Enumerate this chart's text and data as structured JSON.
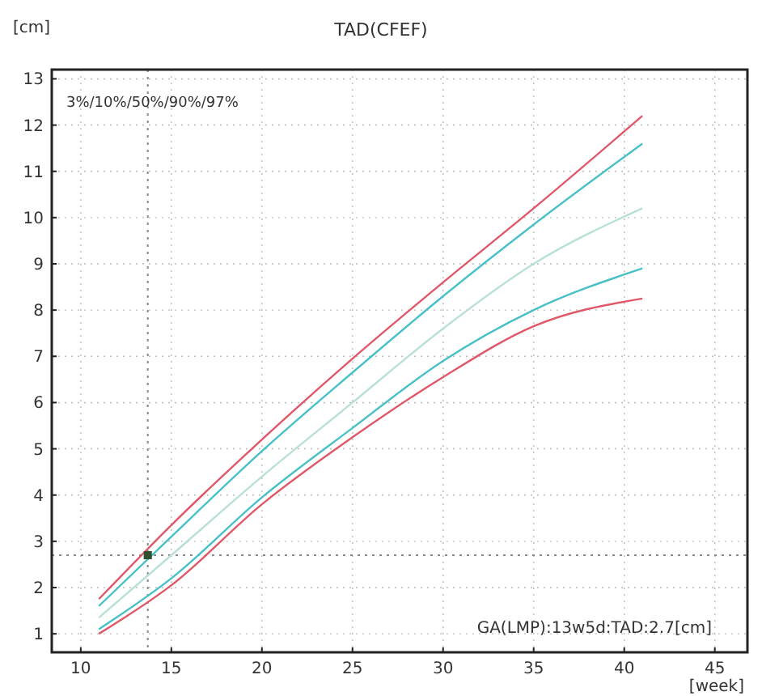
{
  "chart_data": {
    "type": "line",
    "title": "TAD(CFEF)",
    "xlabel": "[week]",
    "ylabel": "[cm]",
    "xlim": [
      8.4,
      46.8
    ],
    "ylim": [
      0.6,
      13.2
    ],
    "xticks": [
      10,
      15,
      20,
      25,
      30,
      35,
      40,
      45
    ],
    "yticks": [
      1,
      2,
      3,
      4,
      5,
      6,
      7,
      8,
      9,
      10,
      11,
      12,
      13
    ],
    "grid": true,
    "line_style": "solid",
    "x": [
      11,
      15,
      20,
      25,
      30,
      35,
      41
    ],
    "series": [
      {
        "color": "#e05868",
        "values": [
          1.75,
          3.35,
          5.2,
          6.95,
          8.6,
          10.2,
          12.2
        ]
      },
      {
        "color": "#48c0c8",
        "values": [
          1.6,
          3.1,
          4.95,
          6.65,
          8.3,
          9.85,
          11.6
        ]
      },
      {
        "color": "#b8e0d8",
        "values": [
          1.35,
          2.7,
          4.4,
          6.0,
          7.6,
          9.0,
          10.2
        ]
      },
      {
        "color": "#48c0c8",
        "values": [
          1.1,
          2.2,
          3.95,
          5.45,
          6.9,
          8.0,
          8.9
        ]
      },
      {
        "color": "#e05868",
        "values": [
          1.0,
          2.05,
          3.8,
          5.25,
          6.55,
          7.65,
          8.25
        ]
      },
      {
        "type": "scatter",
        "marker": "square",
        "color": "#305030",
        "x": [
          13.7
        ],
        "values": [
          2.7
        ]
      }
    ],
    "ref_lines": [
      {
        "axis": "x",
        "value": 13.7,
        "color": "#888888",
        "line_style": "dotted"
      },
      {
        "axis": "y",
        "value": 2.7,
        "color": "#888888",
        "line_style": "dotted"
      }
    ],
    "annotations": [
      "3%/10%/50%/90%/97%",
      "GA(LMP):13w5d:TAD:2.7[cm]"
    ]
  }
}
